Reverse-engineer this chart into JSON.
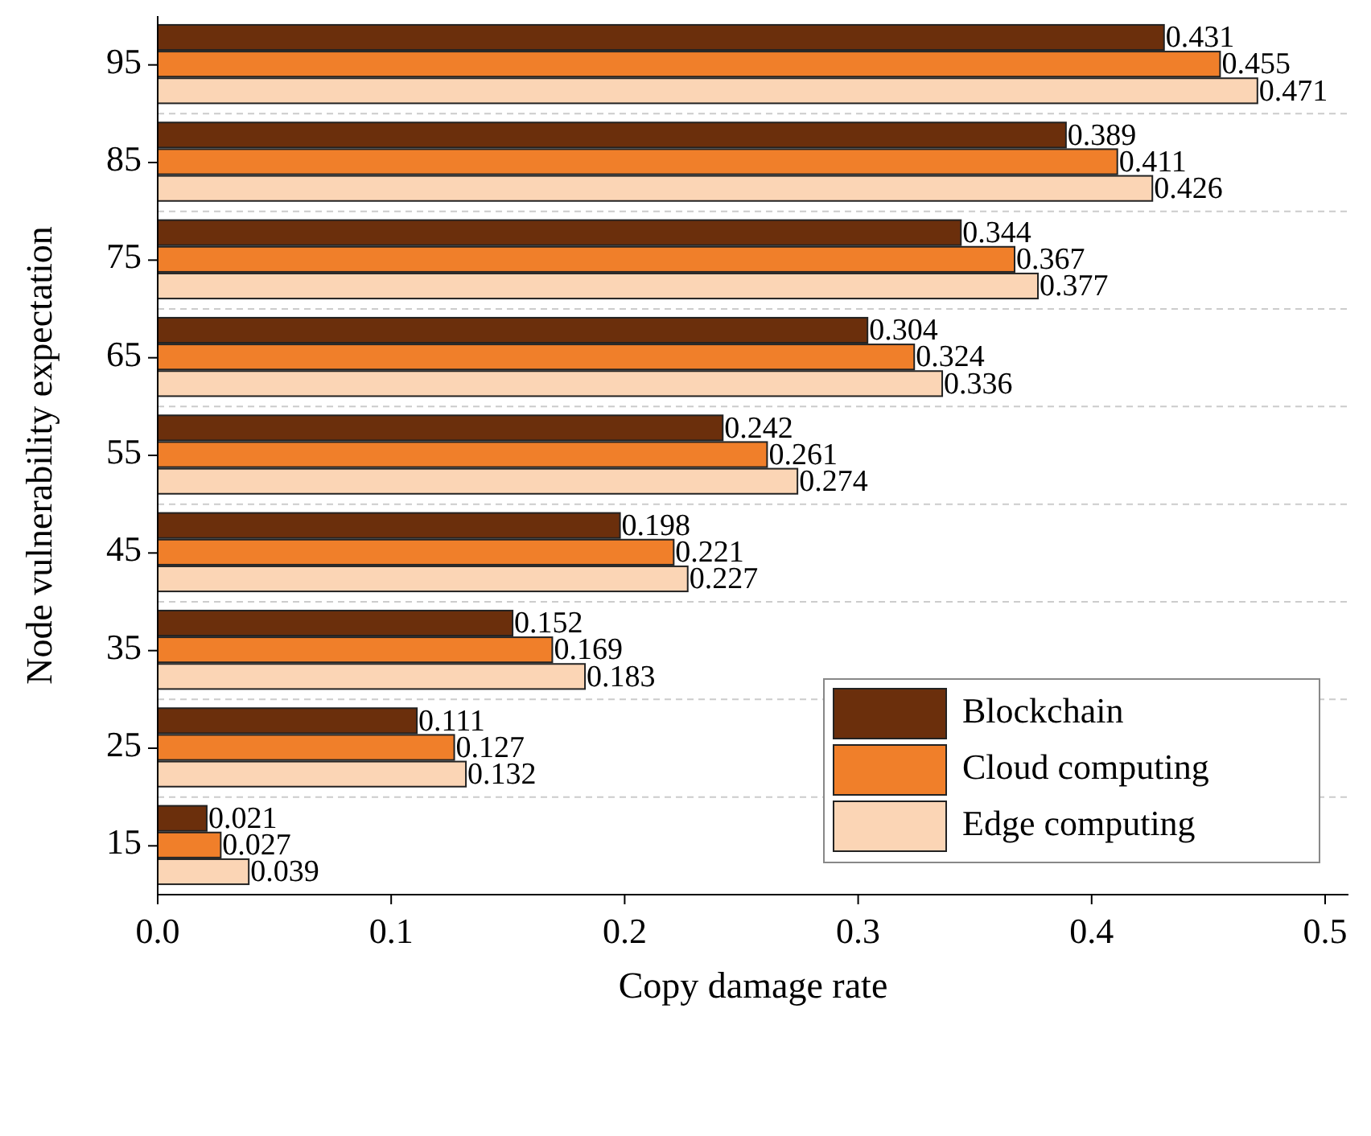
{
  "chart_data": {
    "type": "bar",
    "orientation": "horizontal",
    "xlabel": "Copy damage rate",
    "ylabel": "Node vulnerability expectation",
    "categories": [
      "95",
      "85",
      "75",
      "65",
      "55",
      "45",
      "35",
      "25",
      "15"
    ],
    "series": [
      {
        "name": "Blockchain",
        "color": "#6b2f0c",
        "values": [
          0.431,
          0.389,
          0.344,
          0.304,
          0.242,
          0.198,
          0.152,
          0.111,
          0.021
        ]
      },
      {
        "name": "Cloud computing",
        "color": "#f07f2a",
        "values": [
          0.455,
          0.411,
          0.367,
          0.324,
          0.261,
          0.221,
          0.169,
          0.127,
          0.027
        ]
      },
      {
        "name": "Edge computing",
        "color": "#fbd5b5",
        "values": [
          0.471,
          0.426,
          0.377,
          0.336,
          0.274,
          0.227,
          0.183,
          0.132,
          0.039
        ]
      }
    ],
    "xlim": [
      0,
      0.51
    ],
    "xticks": [
      {
        "value": 0,
        "label": "0.0"
      },
      0.1,
      0.2,
      0.3,
      0.4,
      0.5
    ],
    "data_labels": true,
    "legend": "bottom right"
  }
}
